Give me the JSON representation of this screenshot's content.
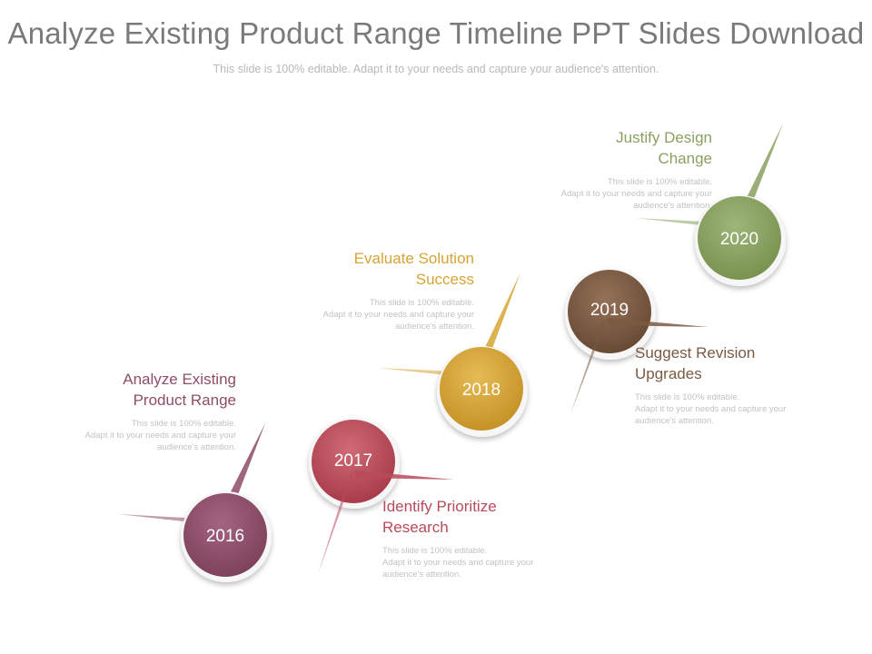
{
  "title": "Analyze Existing Product Range Timeline PPT Slides Download",
  "subtitle": "This slide is 100% editable. Adapt it to your needs and capture your audience's attention.",
  "colors": {
    "y2016": "#8e4c68",
    "y2017": "#b84a5a",
    "y2018": "#d6a434",
    "y2019": "#7a5a42",
    "y2020": "#8aa060"
  },
  "steps": [
    {
      "year": "2016",
      "heading_line1": "Analyze Existing",
      "heading_line2": "Product Range",
      "desc_line1": "This slide is 100% editable.",
      "desc_line2": "Adapt it to your needs and capture your",
      "desc_line3": "audience's attention."
    },
    {
      "year": "2017",
      "heading_line1": "Identify Prioritize",
      "heading_line2": "Research",
      "desc_line1": "This slide is 100% editable.",
      "desc_line2": "Adapt it to your needs and capture your",
      "desc_line3": "audience's attention."
    },
    {
      "year": "2018",
      "heading_line1": "Evaluate Solution",
      "heading_line2": "Success",
      "desc_line1": "This slide is 100% editable.",
      "desc_line2": "Adapt it to your needs and capture your",
      "desc_line3": "audience's attention."
    },
    {
      "year": "2019",
      "heading_line1": "Suggest Revision",
      "heading_line2": "Upgrades",
      "desc_line1": "This slide is 100% editable.",
      "desc_line2": "Adapt it to your needs and capture your",
      "desc_line3": "audience's attention."
    },
    {
      "year": "2020",
      "heading_line1": "Justify Design",
      "heading_line2": "Change",
      "desc_line1": "This slide is 100% editable.",
      "desc_line2": "Adapt it to your needs and capture your",
      "desc_line3": "audience's attention."
    }
  ]
}
